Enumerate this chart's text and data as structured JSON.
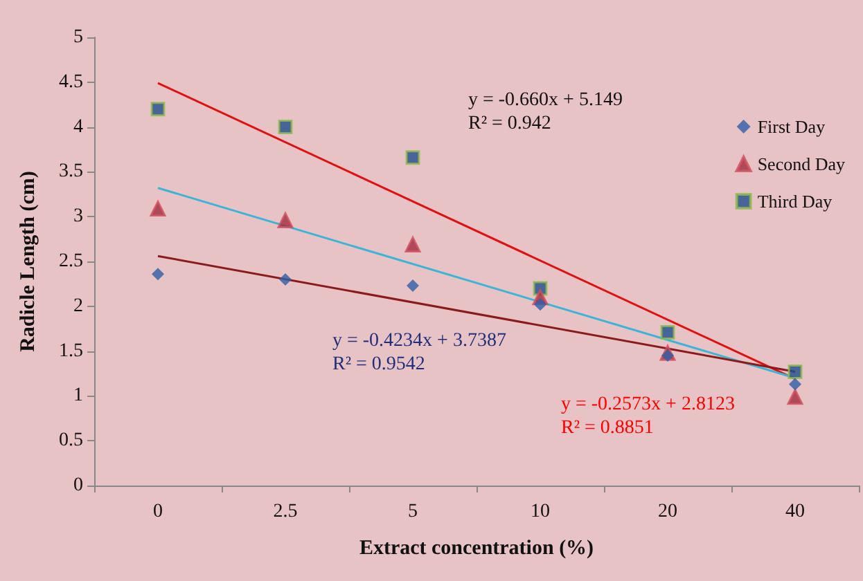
{
  "chart_data": {
    "type": "scatter",
    "xlabel": "Extract concentration (%)",
    "ylabel": "Radicle Length (cm)",
    "categories": [
      "0",
      "2.5",
      "5",
      "10",
      "20",
      "40"
    ],
    "ylim": [
      0,
      5
    ],
    "yticks": [
      0,
      0.5,
      1,
      1.5,
      2,
      2.5,
      3,
      3.5,
      4,
      4.5,
      5
    ],
    "grid": false,
    "legend": "top right",
    "series": [
      {
        "name": "First Day",
        "color": "#2e5fa8",
        "marker": "diamond",
        "values": [
          2.36,
          2.3,
          2.23,
          2.02,
          1.45,
          1.13
        ]
      },
      {
        "name": "Second Day",
        "color": "#9e2a3c",
        "marker": "triangle",
        "values": [
          3.09,
          2.96,
          2.69,
          2.1,
          1.48,
          0.99
        ]
      },
      {
        "name": "Third Day",
        "color": "#1f4e8c",
        "marker": "square",
        "values": [
          4.2,
          4.0,
          3.66,
          2.2,
          1.71,
          1.27
        ]
      },
      {
        "type": "line",
        "color": "#e01010",
        "marker": "none",
        "x": [
          "0",
          "40"
        ],
        "values": [
          4.49,
          1.19
        ]
      },
      {
        "type": "line",
        "color": "#3cb4d8",
        "marker": "none",
        "x": [
          "0",
          "40"
        ],
        "values": [
          3.32,
          1.2
        ]
      },
      {
        "type": "line",
        "color": "#8b1a1a",
        "marker": "none",
        "x": [
          "0",
          "40"
        ],
        "values": [
          2.56,
          1.27
        ]
      }
    ],
    "annotations": [
      "y = -0.660x + 5.149\nR² = 0.942",
      "y = -0.4234x + 3.7387\nR² = 0.9542",
      "y = -0.2573x + 2.8123\nR² = 0.8851"
    ]
  }
}
